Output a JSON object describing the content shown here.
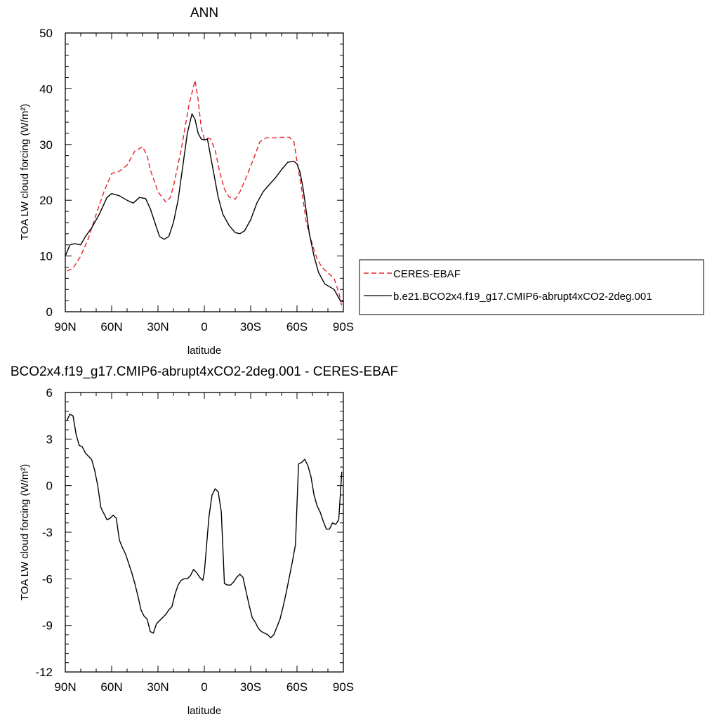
{
  "chart_data": [
    {
      "type": "line",
      "title": "ANN",
      "xlabel": "latitude",
      "ylabel": "TOA LW cloud forcing (W/m²)",
      "x_ticks": [
        {
          "value": -90,
          "label": "90N"
        },
        {
          "value": -60,
          "label": "60N"
        },
        {
          "value": -30,
          "label": "30N"
        },
        {
          "value": 0,
          "label": "0"
        },
        {
          "value": 30,
          "label": "30S"
        },
        {
          "value": 60,
          "label": "60S"
        },
        {
          "value": 90,
          "label": "90S"
        }
      ],
      "y_ticks": [
        0,
        10,
        20,
        30,
        40,
        50
      ],
      "xlim": [
        -90,
        90
      ],
      "ylim": [
        0,
        50
      ],
      "grid": false,
      "legend_position": "right",
      "series": [
        {
          "name": "CERES-EBAF",
          "color": "#e8202a",
          "dash": "dashed",
          "x": [
            -89,
            -85,
            -80,
            -75,
            -70,
            -65,
            -60,
            -55,
            -50,
            -45,
            -40,
            -37,
            -35,
            -30,
            -25,
            -22,
            -20,
            -15,
            -10,
            -6,
            -4,
            -2,
            0,
            2,
            4,
            7,
            10,
            13,
            16,
            20,
            23,
            27,
            32,
            36,
            40,
            45,
            50,
            55,
            58,
            60,
            63,
            66,
            70,
            73,
            76,
            80,
            84,
            87,
            89
          ],
          "y": [
            7.3,
            7.8,
            10,
            13.2,
            17.5,
            21.5,
            24.8,
            25.2,
            26.3,
            28.8,
            29.6,
            28,
            25.5,
            21.5,
            19.7,
            20.5,
            22.5,
            29,
            37,
            41.5,
            38,
            33,
            31,
            31.2,
            31,
            29,
            25,
            22,
            20.6,
            20.2,
            21.5,
            24,
            27.5,
            30.5,
            31.2,
            31.2,
            31.3,
            31.3,
            30.5,
            27,
            22,
            16,
            12,
            9.5,
            8,
            7,
            6,
            3.5,
            1
          ]
        },
        {
          "name": "b.e21.BCO2x4.f19_g17.CMIP6-abrupt4xCO2-2deg.001",
          "color": "#000000",
          "dash": "solid",
          "x": [
            -90,
            -87,
            -84,
            -80,
            -77,
            -73,
            -68,
            -63,
            -60,
            -55,
            -50,
            -46,
            -42,
            -38,
            -35,
            -32,
            -29,
            -26,
            -23,
            -20,
            -17,
            -14,
            -11,
            -8,
            -6,
            -4,
            -2,
            0,
            2,
            4,
            6,
            9,
            12,
            16,
            20,
            23,
            26,
            30,
            34,
            38,
            42,
            46,
            50,
            54,
            58,
            60,
            62,
            64,
            66,
            68,
            71,
            74,
            78,
            81,
            84,
            86,
            88,
            90
          ],
          "y": [
            10,
            12,
            12.2,
            12,
            13.5,
            15,
            17.5,
            20.5,
            21.2,
            20.8,
            20,
            19.5,
            20.5,
            20.3,
            18.5,
            16,
            13.5,
            13,
            13.5,
            16,
            20,
            26,
            32,
            35.5,
            34.5,
            32,
            31,
            30.8,
            31,
            28,
            25,
            20.5,
            17.5,
            15.5,
            14.2,
            14,
            14.5,
            16.5,
            19.5,
            21.5,
            22.8,
            24,
            25.5,
            26.8,
            27,
            26.5,
            25,
            22,
            18,
            14,
            10,
            7,
            5,
            4.5,
            4,
            3,
            2,
            1.8
          ]
        }
      ]
    },
    {
      "type": "line",
      "title": "BCO2x4.f19_g17.CMIP6-abrupt4xCO2-2deg.001 - CERES-EBAF",
      "xlabel": "latitude",
      "ylabel": "TOA LW cloud forcing (W/m²)",
      "x_ticks": [
        {
          "value": -90,
          "label": "90N"
        },
        {
          "value": -60,
          "label": "60N"
        },
        {
          "value": -30,
          "label": "30N"
        },
        {
          "value": 0,
          "label": "0"
        },
        {
          "value": 30,
          "label": "30S"
        },
        {
          "value": 60,
          "label": "60S"
        },
        {
          "value": 90,
          "label": "90S"
        }
      ],
      "y_ticks": [
        -12,
        -9,
        -6,
        -3,
        0,
        3,
        6
      ],
      "xlim": [
        -90,
        90
      ],
      "ylim": [
        -12,
        6
      ],
      "grid": false,
      "series": [
        {
          "name": "",
          "color": "#000000",
          "dash": "solid",
          "x": [
            -89,
            -87,
            -85,
            -83,
            -81,
            -79,
            -77,
            -75,
            -73,
            -71,
            -69,
            -67,
            -65,
            -63,
            -61,
            -59,
            -57,
            -55,
            -53,
            -51,
            -49,
            -47,
            -45,
            -43,
            -41,
            -39,
            -37,
            -35,
            -33,
            -31,
            -29,
            -27,
            -25,
            -23,
            -21,
            -19,
            -17,
            -15,
            -13,
            -11,
            -9,
            -7,
            -5,
            -3,
            -1,
            0,
            1,
            3,
            5,
            7,
            9,
            11,
            13,
            15,
            17,
            19,
            21,
            23,
            25,
            27,
            29,
            31,
            33,
            35,
            37,
            39,
            41,
            43,
            45,
            47,
            49,
            51,
            53,
            55,
            57,
            59,
            61,
            63,
            65,
            67,
            69,
            71,
            73,
            75,
            77,
            79,
            81,
            83,
            85,
            87,
            89
          ],
          "y": [
            4.2,
            4.6,
            4.5,
            3.3,
            2.6,
            2.5,
            2.1,
            1.9,
            1.7,
            1.0,
            0.0,
            -1.4,
            -1.8,
            -2.2,
            -2.1,
            -1.9,
            -2.1,
            -3.5,
            -4.0,
            -4.4,
            -5.0,
            -5.6,
            -6.3,
            -7.1,
            -8.0,
            -8.4,
            -8.6,
            -9.4,
            -9.5,
            -8.9,
            -8.7,
            -8.5,
            -8.3,
            -8.0,
            -7.8,
            -7.0,
            -6.4,
            -6.1,
            -6.0,
            -6.0,
            -5.8,
            -5.4,
            -5.6,
            -5.9,
            -6.1,
            -5.6,
            -4.4,
            -2.0,
            -0.6,
            -0.2,
            -0.4,
            -1.7,
            -6.3,
            -6.4,
            -6.4,
            -6.2,
            -5.9,
            -5.7,
            -5.9,
            -6.8,
            -7.7,
            -8.5,
            -8.8,
            -9.2,
            -9.4,
            -9.5,
            -9.6,
            -9.8,
            -9.6,
            -9.1,
            -8.6,
            -7.8,
            -6.9,
            -5.9,
            -4.9,
            -3.8,
            1.4,
            1.5,
            1.7,
            1.3,
            0.6,
            -0.6,
            -1.3,
            -1.7,
            -2.3,
            -2.8,
            -2.8,
            -2.4,
            -2.5,
            -2.2,
            0.9
          ]
        }
      ]
    }
  ]
}
